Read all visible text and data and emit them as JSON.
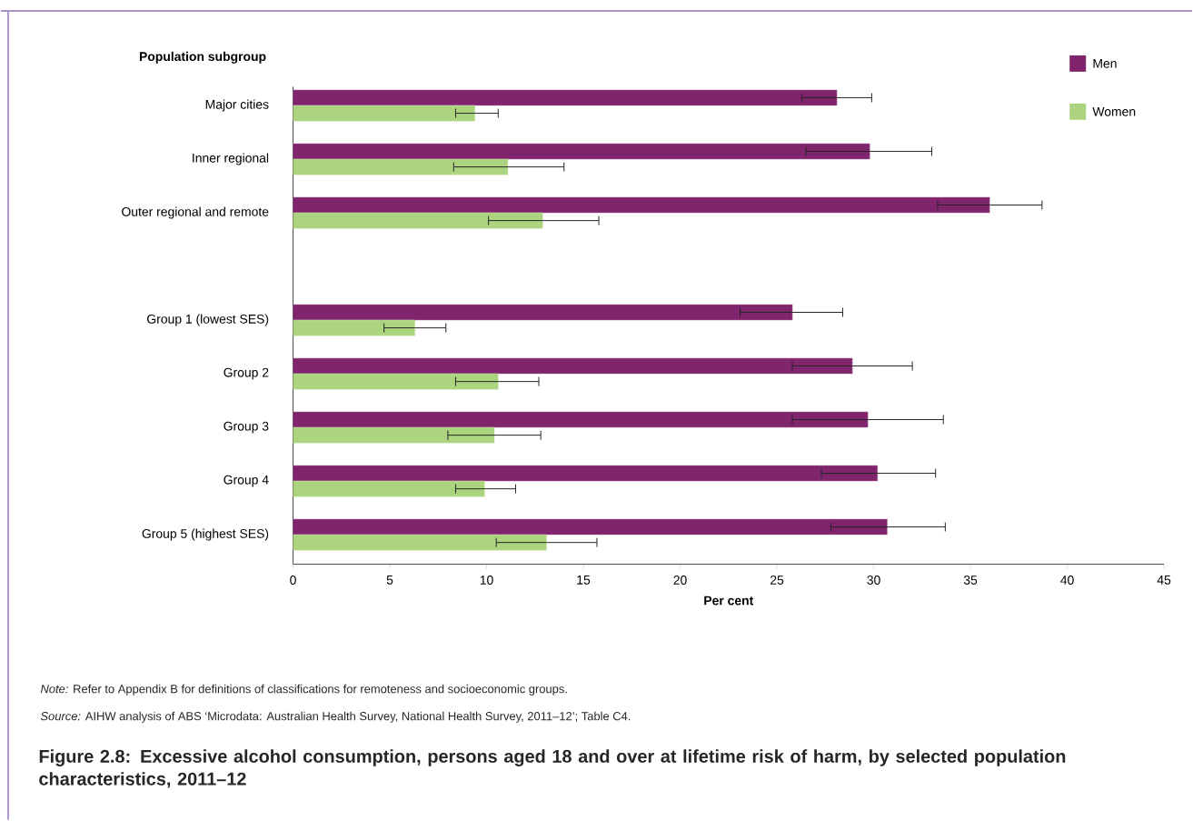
{
  "chart_data": {
    "type": "bar",
    "orientation": "horizontal",
    "title": "Figure 2.8: Excessive alcohol consumption, persons aged 18 and over at lifetime risk of harm, by selected population characteristics, 2011–12",
    "ylabel": "Population subgroup",
    "xlabel": "Per cent",
    "categories": [
      "Major cities",
      "Inner regional",
      "Outer regional and remote",
      null,
      "Group 1 (lowest SES)",
      "Group 2",
      "Group 3",
      "Group 4",
      "Group 5 (highest SES)"
    ],
    "series": [
      {
        "name": "Men",
        "color": "#7f246d",
        "values": [
          28.1,
          29.8,
          36.0,
          null,
          25.8,
          28.9,
          29.7,
          30.2,
          30.7
        ],
        "errors": [
          [
            26.3,
            29.9
          ],
          [
            26.5,
            33.0
          ],
          [
            33.3,
            38.7
          ],
          null,
          [
            23.1,
            28.4
          ],
          [
            25.8,
            32.0
          ],
          [
            25.8,
            33.6
          ],
          [
            27.3,
            33.2
          ],
          [
            27.8,
            33.7
          ]
        ]
      },
      {
        "name": "Women",
        "color": "#acd47f",
        "values": [
          9.4,
          11.1,
          12.9,
          null,
          6.3,
          10.6,
          10.4,
          9.9,
          13.1
        ],
        "errors": [
          [
            8.4,
            10.6
          ],
          [
            8.3,
            14.0
          ],
          [
            10.1,
            15.8
          ],
          null,
          [
            4.7,
            7.9
          ],
          [
            8.4,
            12.7
          ],
          [
            8.0,
            12.8
          ],
          [
            8.4,
            11.5
          ],
          [
            10.5,
            15.7
          ]
        ]
      }
    ],
    "xlim": [
      0,
      45
    ],
    "xticks": [
      0,
      5,
      10,
      15,
      20,
      25,
      30,
      35,
      40,
      45
    ],
    "legend": "top right",
    "annotations": [
      "*Note:* Refer to Appendix B for definitions of classifications for remoteness and socioeconomic groups.",
      "*Source:* AIHW analysis of ABS ‘Microdata: Australian Health Survey, National Health Survey, 2011–12’; Table C4."
    ]
  }
}
